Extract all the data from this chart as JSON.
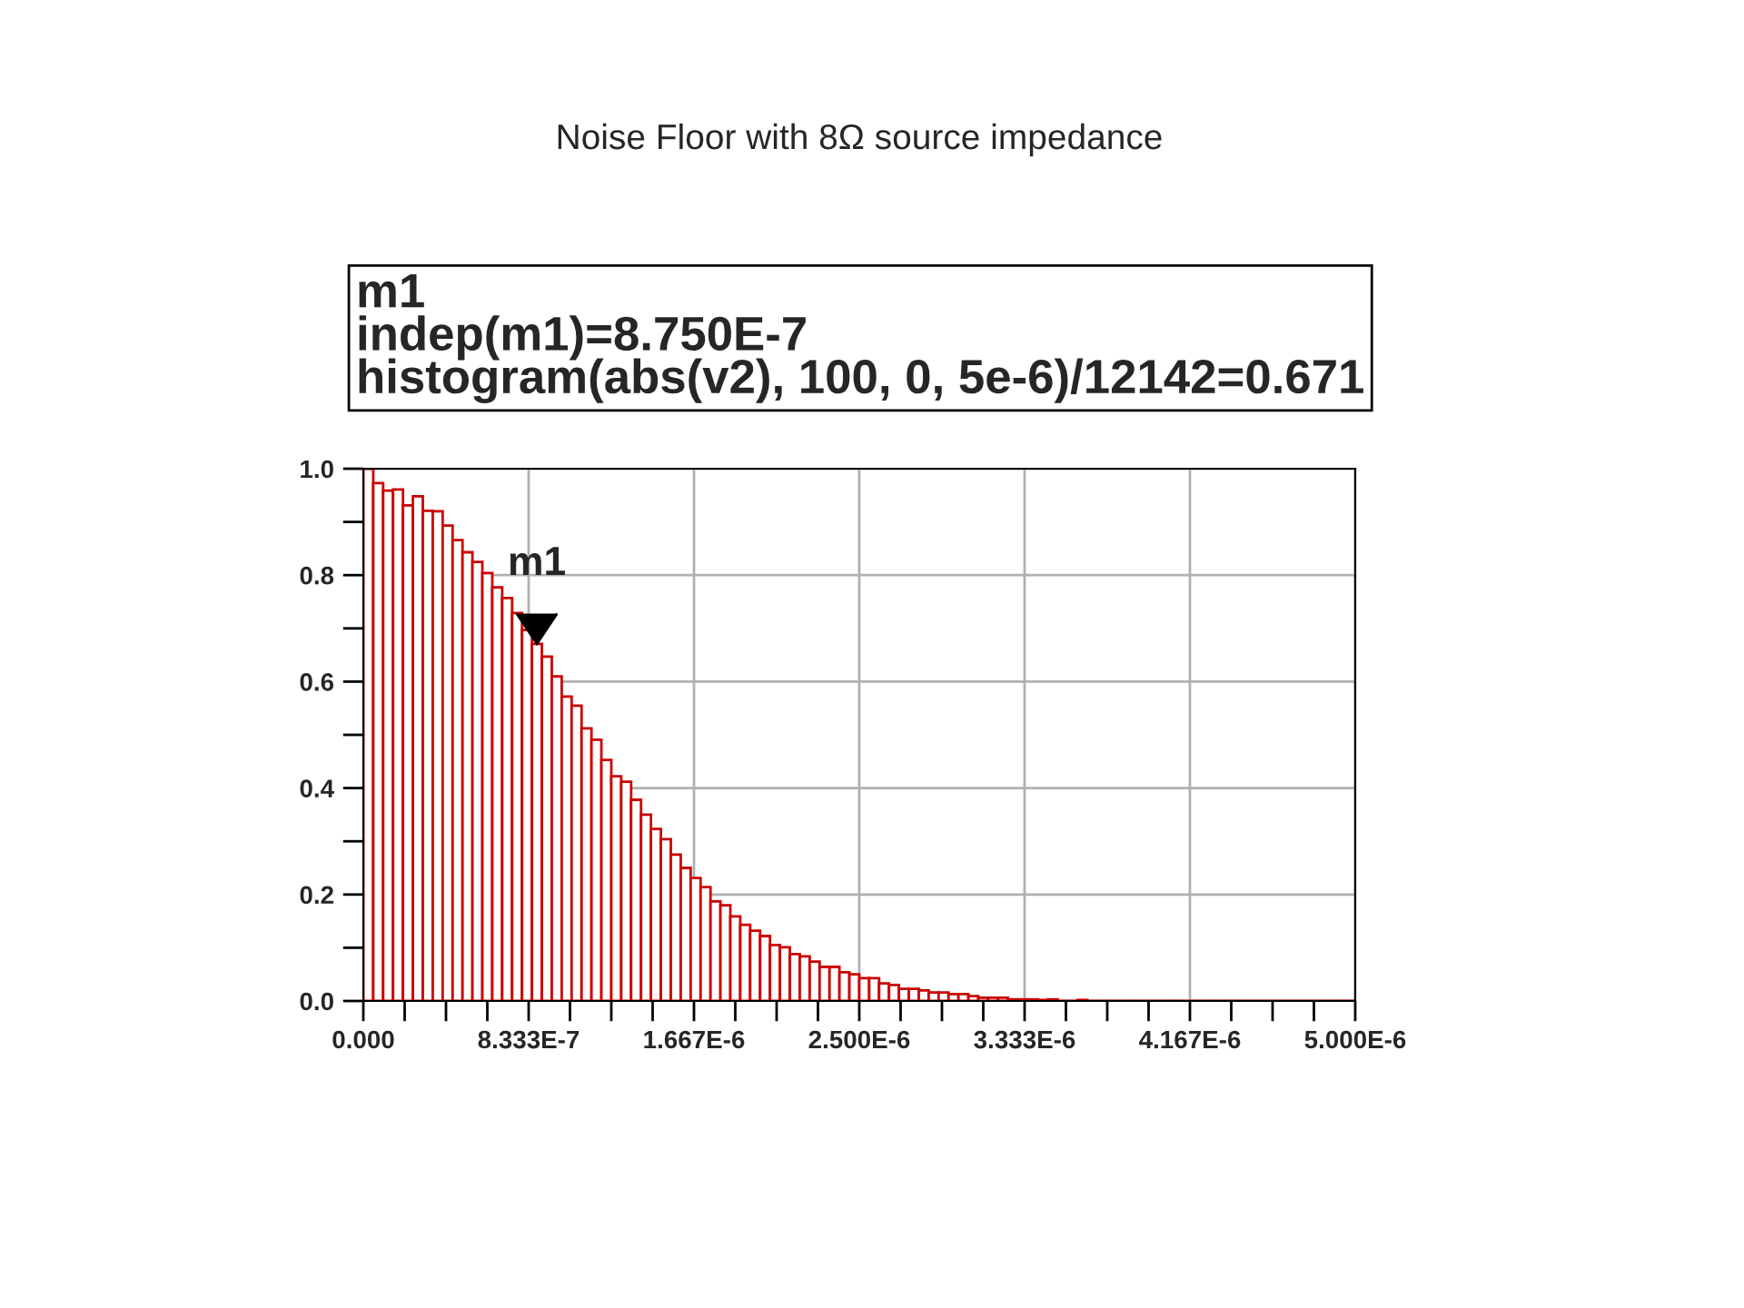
{
  "chart_data": {
    "type": "histogram",
    "title": "Noise Floor with 8Ω source impedance",
    "annotations": [
      "m1",
      "indep(m1)=8.750E-7",
      "histogram(abs(v2), 100, 0, 5e-6)/12142=0.671",
      {
        "text": "m1",
        "x": 8.75e-07,
        "y": 0.671
      }
    ],
    "bins": [
      0,
      5e-08,
      1e-07,
      1.5e-07,
      2e-07,
      2.5e-07,
      3e-07,
      3.5e-07,
      4e-07,
      4.5e-07,
      5e-07,
      5.5e-07,
      6e-07,
      6.5e-07,
      7e-07,
      7.5e-07,
      8e-07,
      8.5e-07,
      9e-07,
      9.5e-07,
      1e-06,
      1.05e-06,
      1.1e-06,
      1.15e-06,
      1.2e-06,
      1.25e-06,
      1.3e-06,
      1.35e-06,
      1.4e-06,
      1.45e-06,
      1.5e-06,
      1.55e-06,
      1.6e-06,
      1.65e-06,
      1.7e-06,
      1.75e-06,
      1.8e-06,
      1.85e-06,
      1.9e-06,
      1.95e-06,
      2e-06,
      2.05e-06,
      2.1e-06,
      2.15e-06,
      2.2e-06,
      2.25e-06,
      2.3e-06,
      2.35e-06,
      2.4e-06,
      2.45e-06,
      2.5e-06,
      2.55e-06,
      2.6e-06,
      2.65e-06,
      2.7e-06,
      2.75e-06,
      2.8e-06,
      2.85e-06,
      2.9e-06,
      2.95e-06,
      3e-06,
      3.05e-06,
      3.1e-06,
      3.15e-06,
      3.2e-06,
      3.25e-06,
      3.3e-06,
      3.35e-06,
      3.4e-06,
      3.45e-06,
      3.5e-06,
      3.55e-06,
      3.6e-06,
      3.65e-06,
      3.7e-06,
      3.75e-06,
      3.8e-06,
      3.85e-06,
      3.9e-06,
      3.95e-06,
      4e-06,
      4.05e-06,
      4.1e-06,
      4.15e-06,
      4.2e-06,
      4.25e-06,
      4.3e-06,
      4.35e-06,
      4.4e-06,
      4.45e-06,
      4.5e-06,
      4.55e-06,
      4.6e-06,
      4.65e-06,
      4.7e-06,
      4.75e-06,
      4.8e-06,
      4.85e-06,
      4.9e-06,
      4.95e-06,
      5e-06
    ],
    "values": [
      1.0,
      0.973,
      0.959,
      0.961,
      0.931,
      0.948,
      0.921,
      0.92,
      0.893,
      0.866,
      0.843,
      0.825,
      0.804,
      0.777,
      0.757,
      0.729,
      0.697,
      0.671,
      0.647,
      0.61,
      0.572,
      0.555,
      0.512,
      0.491,
      0.453,
      0.422,
      0.412,
      0.378,
      0.35,
      0.323,
      0.304,
      0.275,
      0.25,
      0.231,
      0.214,
      0.187,
      0.18,
      0.159,
      0.143,
      0.132,
      0.122,
      0.105,
      0.101,
      0.088,
      0.084,
      0.074,
      0.064,
      0.064,
      0.054,
      0.05,
      0.043,
      0.043,
      0.033,
      0.03,
      0.023,
      0.023,
      0.02,
      0.016,
      0.016,
      0.013,
      0.013,
      0.009,
      0.006,
      0.006,
      0.006,
      0.003,
      0.003,
      0.003,
      0.002,
      0.003,
      0,
      0,
      0.002,
      0,
      0,
      0,
      0,
      0,
      0,
      0,
      0,
      0,
      0,
      0,
      0,
      0,
      0,
      0,
      0,
      0,
      0,
      0,
      0,
      0,
      0,
      0,
      0,
      0,
      0,
      0
    ],
    "color": "#cc0000",
    "xlim": [
      0,
      5e-06
    ],
    "xticks": [
      {
        "value": 0,
        "label": "0.000"
      },
      {
        "value": 2.0833e-07,
        "label": null
      },
      {
        "value": 4.1667e-07,
        "label": null
      },
      {
        "value": 6.25e-07,
        "label": null
      },
      {
        "value": 8.3333e-07,
        "label": "8.333E-7"
      },
      {
        "value": 1.0417e-06,
        "label": null
      },
      {
        "value": 1.25e-06,
        "label": null
      },
      {
        "value": 1.4583e-06,
        "label": null
      },
      {
        "value": 1.6667e-06,
        "label": "1.667E-6"
      },
      {
        "value": 1.875e-06,
        "label": null
      },
      {
        "value": 2.0833e-06,
        "label": null
      },
      {
        "value": 2.2917e-06,
        "label": null
      },
      {
        "value": 2.5e-06,
        "label": "2.500E-6"
      },
      {
        "value": 2.7083e-06,
        "label": null
      },
      {
        "value": 2.9167e-06,
        "label": null
      },
      {
        "value": 3.125e-06,
        "label": null
      },
      {
        "value": 3.3333e-06,
        "label": "3.333E-6"
      },
      {
        "value": 3.5417e-06,
        "label": null
      },
      {
        "value": 3.75e-06,
        "label": null
      },
      {
        "value": 3.9583e-06,
        "label": null
      },
      {
        "value": 4.1667e-06,
        "label": "4.167E-6"
      },
      {
        "value": 4.375e-06,
        "label": null
      },
      {
        "value": 4.5833e-06,
        "label": null
      },
      {
        "value": 4.7917e-06,
        "label": null
      },
      {
        "value": 5e-06,
        "label": "5.000E-6"
      }
    ],
    "ylim": [
      0,
      1.0
    ],
    "yticks": [
      {
        "value": 0,
        "label": "0.0"
      },
      {
        "value": 0.1,
        "label": null
      },
      {
        "value": 0.2,
        "label": "0.2"
      },
      {
        "value": 0.3,
        "label": null
      },
      {
        "value": 0.4,
        "label": "0.4"
      },
      {
        "value": 0.5,
        "label": null
      },
      {
        "value": 0.6,
        "label": "0.6"
      },
      {
        "value": 0.7,
        "label": null
      },
      {
        "value": 0.8,
        "label": "0.8"
      },
      {
        "value": 0.9,
        "label": null
      },
      {
        "value": 1.0,
        "label": "1.0"
      }
    ],
    "grid": true
  }
}
